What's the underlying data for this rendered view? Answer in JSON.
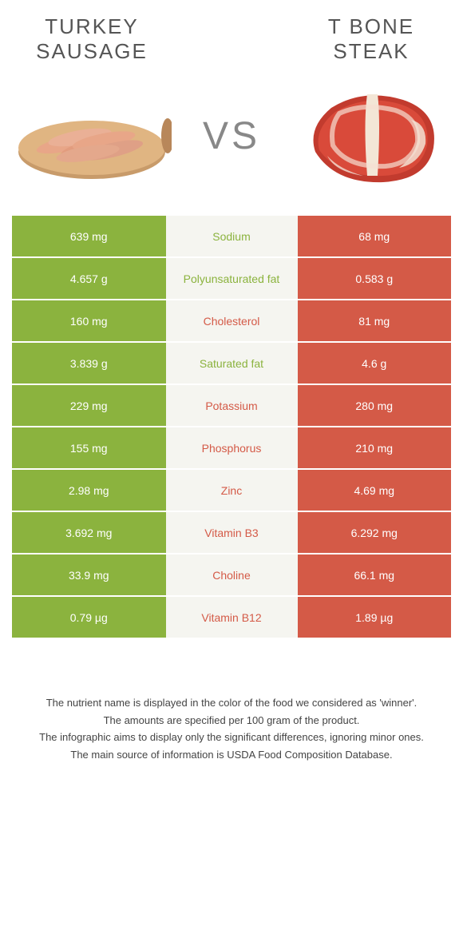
{
  "left": {
    "title": "TURKEY SAUSAGE",
    "color": "#8bb33e"
  },
  "right": {
    "title": "T BONE STEAK",
    "color": "#d45a47"
  },
  "vs": "VS",
  "colors": {
    "left_bg": "#8bb33e",
    "right_bg": "#d45a47",
    "mid_bg": "#f5f5f0",
    "row_border": "#ffffff"
  },
  "rows": [
    {
      "left": "639 mg",
      "label": "Sodium",
      "right": "68 mg",
      "winner": "left"
    },
    {
      "left": "4.657 g",
      "label": "Polyunsaturated fat",
      "right": "0.583 g",
      "winner": "left"
    },
    {
      "left": "160 mg",
      "label": "Cholesterol",
      "right": "81 mg",
      "winner": "right"
    },
    {
      "left": "3.839 g",
      "label": "Saturated fat",
      "right": "4.6 g",
      "winner": "left"
    },
    {
      "left": "229 mg",
      "label": "Potassium",
      "right": "280 mg",
      "winner": "right"
    },
    {
      "left": "155 mg",
      "label": "Phosphorus",
      "right": "210 mg",
      "winner": "right"
    },
    {
      "left": "2.98 mg",
      "label": "Zinc",
      "right": "4.69 mg",
      "winner": "right"
    },
    {
      "left": "3.692 mg",
      "label": "Vitamin B3",
      "right": "6.292 mg",
      "winner": "right"
    },
    {
      "left": "33.9 mg",
      "label": "Choline",
      "right": "66.1 mg",
      "winner": "right"
    },
    {
      "left": "0.79 µg",
      "label": "Vitamin B12",
      "right": "1.89 µg",
      "winner": "right"
    }
  ],
  "footer": [
    "The nutrient name is displayed in the color of the food we considered as 'winner'.",
    "The amounts are specified per 100 gram of the product.",
    "The infographic aims to display only the significant differences, ignoring minor ones.",
    "The main source of information is USDA Food Composition Database."
  ]
}
